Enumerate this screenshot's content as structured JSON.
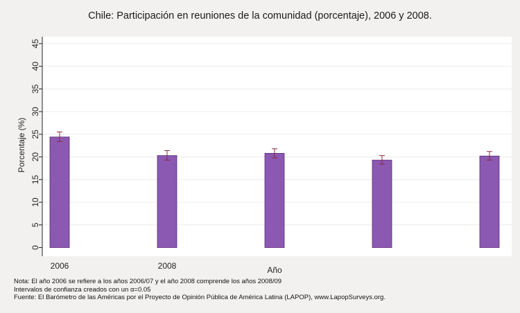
{
  "chart_data": {
    "type": "bar",
    "title": "Chile: Participación en reuniones de la comunidad (porcentaje), 2006 y 2008.",
    "xlabel": "Año",
    "ylabel": "Porcentaje (%)",
    "ylim": [
      0,
      45
    ],
    "yticks": [
      0,
      5,
      10,
      15,
      20,
      25,
      30,
      35,
      40,
      45
    ],
    "categories": [
      "2006",
      "2008",
      "",
      "",
      ""
    ],
    "values": [
      24.4,
      20.3,
      20.8,
      19.3,
      20.2
    ],
    "ci_low": [
      23.4,
      19.3,
      19.8,
      18.4,
      19.3
    ],
    "ci_high": [
      25.5,
      21.4,
      21.8,
      20.3,
      21.2
    ],
    "grid": true,
    "bar_color": "#8b58b2",
    "bar_edge_color": "#5a2d78",
    "error_bar_color": "#8b2a3a",
    "gridline_color": "#ececec"
  },
  "notes": [
    "Nota: El año 2006 se refiere a los años 2006/07 y el año 2008 comprende los años 2008/09",
    "Intervalos de confianza creados con un α=0.05",
    "Fuente: El Barómetro de las Américas por el Proyecto de Opinión Pública de América Latina (LAPOP), www.LapopSurveys.org."
  ]
}
